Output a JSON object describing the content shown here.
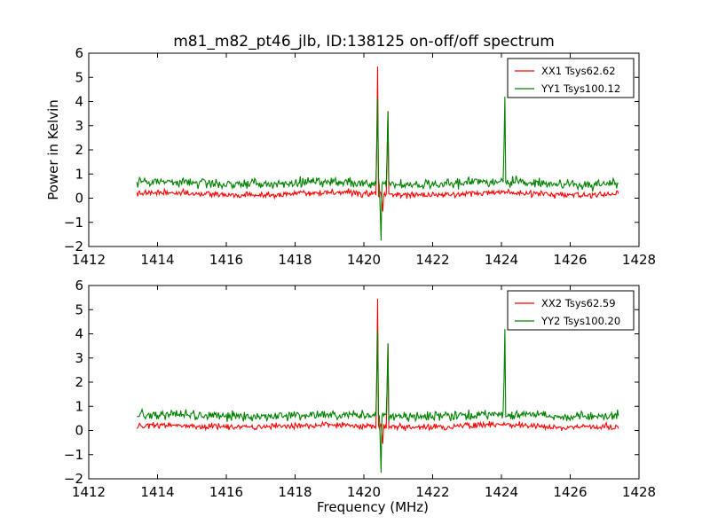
{
  "title": "m81_m82_pt46_jlb, ID:138125 on-off/off spectrum",
  "colors": {
    "xx": "#ff0000",
    "yy": "#008000",
    "axes": "#000000",
    "background": "#ffffff"
  },
  "chart_data": [
    {
      "type": "line",
      "ylabel": "Power in Kelvin",
      "xlabel": "",
      "xlim": [
        1412,
        1428
      ],
      "ylim": [
        -2,
        6
      ],
      "xticks": [
        "1412",
        "1414",
        "1416",
        "1418",
        "1420",
        "1422",
        "1424",
        "1426",
        "1428"
      ],
      "yticks": [
        "−2",
        "−1",
        "0",
        "1",
        "2",
        "3",
        "4",
        "5",
        "6"
      ],
      "grid": false,
      "legend_position": "top-right",
      "series": [
        {
          "name": "XX1 Tsys62.62",
          "color": "#ff0000",
          "x_range": [
            1413.4,
            1427.4
          ],
          "baseline": 0.18,
          "noise": 0.09,
          "features": [
            {
              "x": 1420.4,
              "y": 5.45
            },
            {
              "x": 1420.55,
              "y": -0.55
            },
            {
              "x": 1420.7,
              "y": 3.6
            }
          ]
        },
        {
          "name": "YY1 Tsys100.12",
          "color": "#008000",
          "x_range": [
            1413.4,
            1427.4
          ],
          "baseline": 0.62,
          "noise": 0.14,
          "features": [
            {
              "x": 1420.4,
              "y": 4.15
            },
            {
              "x": 1420.5,
              "y": -1.75
            },
            {
              "x": 1420.7,
              "y": 3.6
            },
            {
              "x": 1424.1,
              "y": 4.2
            }
          ]
        }
      ]
    },
    {
      "type": "line",
      "ylabel": "",
      "xlabel": "Frequency (MHz)",
      "xlim": [
        1412,
        1428
      ],
      "ylim": [
        -2,
        6
      ],
      "xticks": [
        "1412",
        "1414",
        "1416",
        "1418",
        "1420",
        "1422",
        "1424",
        "1426",
        "1428"
      ],
      "yticks": [
        "−2",
        "−1",
        "0",
        "1",
        "2",
        "3",
        "4",
        "5",
        "6"
      ],
      "grid": false,
      "legend_position": "top-right",
      "series": [
        {
          "name": "XX2 Tsys62.59",
          "color": "#ff0000",
          "x_range": [
            1413.4,
            1427.4
          ],
          "baseline": 0.18,
          "noise": 0.09,
          "features": [
            {
              "x": 1420.4,
              "y": 5.45
            },
            {
              "x": 1420.55,
              "y": -0.55
            },
            {
              "x": 1420.7,
              "y": 3.6
            }
          ]
        },
        {
          "name": "YY2 Tsys100.20",
          "color": "#008000",
          "x_range": [
            1413.4,
            1427.4
          ],
          "baseline": 0.62,
          "noise": 0.14,
          "features": [
            {
              "x": 1420.4,
              "y": 4.15
            },
            {
              "x": 1420.5,
              "y": -1.75
            },
            {
              "x": 1420.7,
              "y": 3.6
            },
            {
              "x": 1424.1,
              "y": 4.2
            }
          ]
        }
      ]
    }
  ]
}
